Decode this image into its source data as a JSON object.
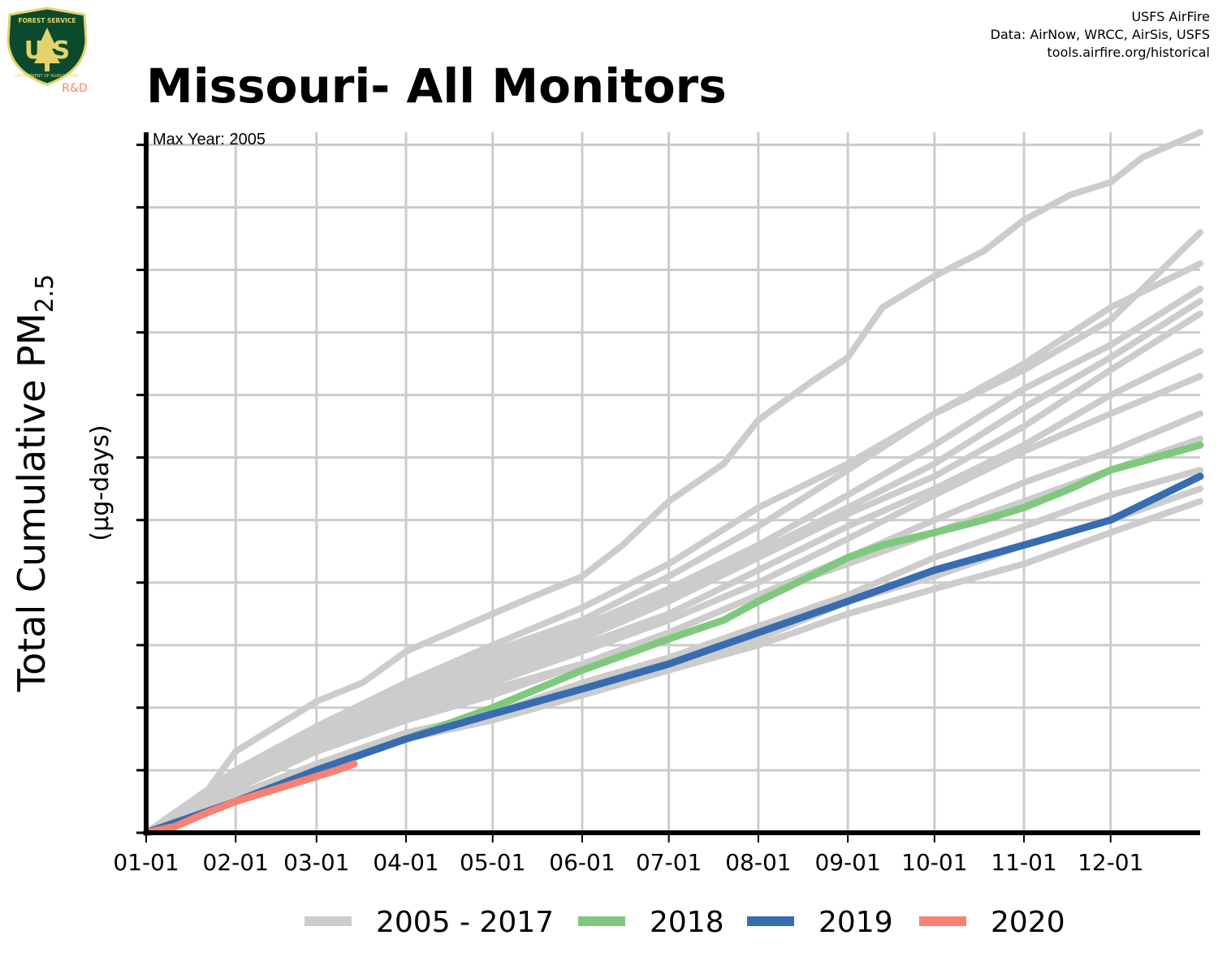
{
  "header": {
    "logo_line1": "FOREST SERVICE",
    "logo_letters": "U S",
    "logo_line2": "DEPARTMENT OF AGRICULTURE",
    "logo_suffix": "R&D",
    "credit_1": "USFS AirFire",
    "credit_2": "Data: AirNow, WRCC, AirSis, USFS",
    "credit_3": "tools.airfire.org/historical"
  },
  "colors": {
    "historical": "#cccccc",
    "y2018": "#7fc97f",
    "y2019": "#386cb0",
    "y2020": "#f98174",
    "logo_green": "#0b4a2c",
    "logo_gold": "#e4d36b"
  },
  "chart_data": {
    "type": "line",
    "title": "Missouri- All Monitors",
    "ylabel_main": "Total Cumulative PM",
    "ylabel_sub": "2.5",
    "ylabel_units": "(μg-days)",
    "annotation": "Max Year: 2005",
    "xlabel": "",
    "x_tick_labels": [
      "01-01",
      "02-01",
      "03-01",
      "04-01",
      "05-01",
      "06-01",
      "07-01",
      "08-01",
      "09-01",
      "10-01",
      "11-01",
      "12-01"
    ],
    "x_tick_days": [
      0,
      31,
      59,
      90,
      120,
      151,
      181,
      212,
      243,
      273,
      304,
      334
    ],
    "xlim": [
      0,
      365
    ],
    "ylim": [
      0,
      11.2
    ],
    "y_ticks": [
      0,
      1,
      2,
      3,
      4,
      5,
      6,
      7,
      8,
      9,
      10,
      11
    ],
    "y_tick_labels_shown": false,
    "grid": true,
    "legend": {
      "placement": "bottom",
      "entries": [
        "2005 - 2017",
        "2018",
        "2019",
        "2020"
      ]
    },
    "series": [
      {
        "name": "2005 - 2017",
        "group": "historical",
        "x": [
          0,
          20,
          31,
          45,
          59,
          75,
          90,
          110,
          130,
          151,
          165,
          181,
          200,
          212,
          230,
          243,
          255,
          273,
          290,
          304,
          320,
          334,
          345,
          365
        ],
        "y": [
          0,
          0.6,
          1.3,
          1.7,
          2.1,
          2.4,
          2.9,
          3.3,
          3.7,
          4.1,
          4.6,
          5.3,
          5.9,
          6.6,
          7.2,
          7.6,
          8.4,
          8.9,
          9.3,
          9.8,
          10.2,
          10.4,
          10.8,
          11.2
        ]
      },
      {
        "name": "2005 - 2017",
        "group": "historical",
        "x": [
          0,
          31,
          59,
          90,
          120,
          151,
          181,
          212,
          243,
          273,
          304,
          334,
          365
        ],
        "y": [
          0,
          1.0,
          1.7,
          2.4,
          3.0,
          3.6,
          4.3,
          5.2,
          5.9,
          6.7,
          7.4,
          8.2,
          9.6
        ]
      },
      {
        "name": "2005 - 2017",
        "group": "historical",
        "x": [
          0,
          31,
          59,
          90,
          120,
          151,
          181,
          212,
          243,
          273,
          304,
          334,
          365
        ],
        "y": [
          0,
          1.0,
          1.6,
          2.3,
          2.9,
          3.4,
          4.1,
          4.9,
          5.8,
          6.7,
          7.5,
          8.4,
          9.1
        ]
      },
      {
        "name": "2005 - 2017",
        "group": "historical",
        "x": [
          0,
          31,
          59,
          90,
          120,
          151,
          181,
          212,
          243,
          273,
          304,
          334,
          365
        ],
        "y": [
          0,
          0.9,
          1.6,
          2.2,
          2.8,
          3.3,
          3.9,
          4.6,
          5.4,
          6.2,
          7.1,
          7.8,
          8.7
        ]
      },
      {
        "name": "2005 - 2017",
        "group": "historical",
        "x": [
          0,
          31,
          59,
          90,
          120,
          151,
          181,
          212,
          243,
          273,
          304,
          334,
          365
        ],
        "y": [
          0,
          0.9,
          1.5,
          2.1,
          2.7,
          3.2,
          3.8,
          4.5,
          5.2,
          5.9,
          6.8,
          7.6,
          8.5
        ]
      },
      {
        "name": "2005 - 2017",
        "group": "historical",
        "x": [
          0,
          31,
          59,
          90,
          120,
          151,
          181,
          212,
          243,
          273,
          304,
          334,
          365
        ],
        "y": [
          0,
          0.9,
          1.5,
          2.1,
          2.6,
          3.1,
          3.7,
          4.4,
          5.1,
          5.7,
          6.5,
          7.4,
          8.3
        ]
      },
      {
        "name": "2005 - 2017",
        "group": "historical",
        "x": [
          0,
          31,
          59,
          90,
          120,
          151,
          181,
          212,
          243,
          273,
          304,
          334,
          365
        ],
        "y": [
          0,
          0.8,
          1.4,
          2.0,
          2.5,
          3.0,
          3.5,
          4.2,
          4.9,
          5.5,
          6.2,
          7.0,
          7.7
        ]
      },
      {
        "name": "2005 - 2017",
        "group": "historical",
        "x": [
          0,
          31,
          59,
          90,
          120,
          151,
          181,
          212,
          243,
          273,
          304,
          334,
          365
        ],
        "y": [
          0,
          0.8,
          1.4,
          1.9,
          2.4,
          2.9,
          3.4,
          4.0,
          4.7,
          5.4,
          6.1,
          6.7,
          7.3
        ]
      },
      {
        "name": "2005 - 2017",
        "group": "historical",
        "x": [
          0,
          31,
          59,
          90,
          120,
          151,
          181,
          212,
          243,
          273,
          304,
          334,
          365
        ],
        "y": [
          0,
          0.8,
          1.3,
          1.8,
          2.3,
          2.7,
          3.2,
          3.8,
          4.4,
          5.0,
          5.6,
          6.1,
          6.7
        ]
      },
      {
        "name": "2005 - 2017",
        "group": "historical",
        "x": [
          0,
          31,
          59,
          90,
          120,
          151,
          181,
          212,
          243,
          273,
          304,
          334,
          365
        ],
        "y": [
          0,
          0.7,
          1.3,
          1.8,
          2.2,
          2.7,
          3.2,
          3.8,
          4.3,
          4.8,
          5.3,
          5.8,
          6.3
        ]
      },
      {
        "name": "2005 - 2017",
        "group": "historical",
        "x": [
          0,
          31,
          59,
          90,
          120,
          151,
          181,
          212,
          243,
          273,
          304,
          334,
          365
        ],
        "y": [
          0,
          0.6,
          1.1,
          1.6,
          1.9,
          2.4,
          2.8,
          3.3,
          3.8,
          4.4,
          4.9,
          5.4,
          5.8
        ]
      },
      {
        "name": "2005 - 2017",
        "group": "historical",
        "x": [
          0,
          31,
          59,
          90,
          120,
          151,
          181,
          212,
          243,
          273,
          304,
          334,
          365
        ],
        "y": [
          0,
          0.6,
          1.0,
          1.5,
          1.9,
          2.2,
          2.6,
          3.1,
          3.7,
          4.1,
          4.6,
          5.0,
          5.5
        ]
      },
      {
        "name": "2005 - 2017",
        "group": "historical",
        "x": [
          0,
          31,
          59,
          90,
          120,
          151,
          181,
          212,
          243,
          273,
          304,
          334,
          365
        ],
        "y": [
          0,
          0.6,
          1.0,
          1.5,
          1.8,
          2.2,
          2.6,
          3.0,
          3.5,
          3.9,
          4.3,
          4.8,
          5.3
        ]
      },
      {
        "name": "2018",
        "group": "y2018",
        "x": [
          0,
          31,
          59,
          90,
          120,
          151,
          181,
          200,
          212,
          230,
          243,
          255,
          273,
          290,
          304,
          320,
          334,
          365
        ],
        "y": [
          0,
          0.5,
          1.0,
          1.5,
          2.0,
          2.6,
          3.1,
          3.4,
          3.7,
          4.1,
          4.4,
          4.6,
          4.8,
          5.0,
          5.2,
          5.5,
          5.8,
          6.2
        ]
      },
      {
        "name": "2019",
        "group": "y2019",
        "x": [
          0,
          31,
          59,
          90,
          120,
          151,
          181,
          212,
          243,
          273,
          304,
          334,
          365
        ],
        "y": [
          0,
          0.5,
          1.0,
          1.5,
          1.9,
          2.3,
          2.7,
          3.2,
          3.7,
          4.2,
          4.6,
          5.0,
          5.7
        ]
      },
      {
        "name": "2020",
        "group": "y2020",
        "x": [
          0,
          10,
          20,
          31,
          45,
          59,
          66,
          72
        ],
        "y": [
          0,
          0.1,
          0.3,
          0.5,
          0.7,
          0.9,
          1.0,
          1.1
        ]
      }
    ]
  }
}
